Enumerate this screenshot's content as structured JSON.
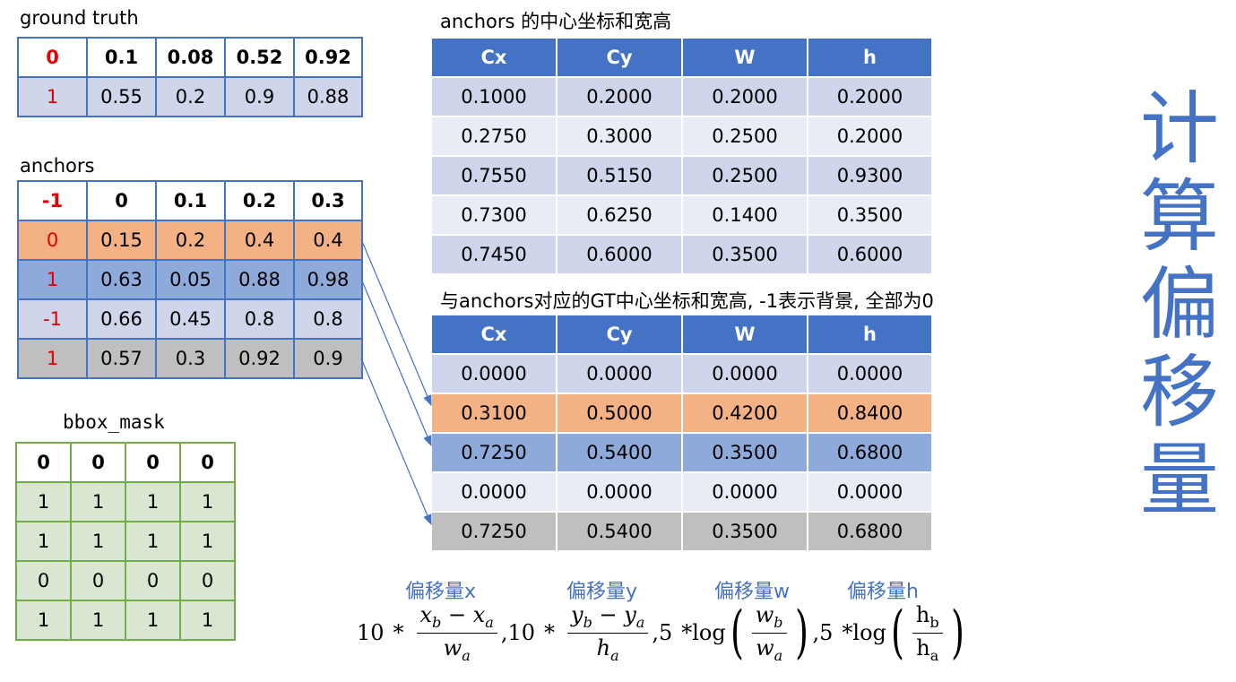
{
  "ground_truth": {
    "title": "ground truth",
    "header": [
      "0",
      "0.1",
      "0.08",
      "0.52",
      "0.92"
    ],
    "rows": [
      [
        "1",
        "0.55",
        "0.2",
        "0.9",
        "0.88"
      ]
    ]
  },
  "anchors": {
    "title": "anchors",
    "header": [
      "-1",
      "0",
      "0.1",
      "0.2",
      "0.3"
    ],
    "rows": [
      [
        "0",
        "0.15",
        "0.2",
        "0.4",
        "0.4"
      ],
      [
        "1",
        "0.63",
        "0.05",
        "0.88",
        "0.98"
      ],
      [
        "-1",
        "0.66",
        "0.45",
        "0.8",
        "0.8"
      ],
      [
        "1",
        "0.57",
        "0.3",
        "0.92",
        "0.9"
      ]
    ]
  },
  "bbox_mask": {
    "title": "bbox_mask",
    "rows": [
      [
        "0",
        "0",
        "0",
        "0"
      ],
      [
        "1",
        "1",
        "1",
        "1"
      ],
      [
        "1",
        "1",
        "1",
        "1"
      ],
      [
        "0",
        "0",
        "0",
        "0"
      ],
      [
        "1",
        "1",
        "1",
        "1"
      ]
    ]
  },
  "anchor_centers": {
    "title": "anchors 的中心坐标和宽高",
    "columns": [
      "Cx",
      "Cy",
      "W",
      "h"
    ],
    "rows": [
      [
        "0.1000",
        "0.2000",
        "0.2000",
        "0.2000"
      ],
      [
        "0.2750",
        "0.3000",
        "0.2500",
        "0.2000"
      ],
      [
        "0.7550",
        "0.5150",
        "0.2500",
        "0.9300"
      ],
      [
        "0.7300",
        "0.6250",
        "0.1400",
        "0.3500"
      ],
      [
        "0.7450",
        "0.6000",
        "0.3500",
        "0.6000"
      ]
    ]
  },
  "gt_centers": {
    "title": "与anchors对应的GT中心坐标和宽高, -1表示背景, 全部为0",
    "columns": [
      "Cx",
      "Cy",
      "W",
      "h"
    ],
    "rows": [
      [
        "0.0000",
        "0.0000",
        "0.0000",
        "0.0000"
      ],
      [
        "0.3100",
        "0.5000",
        "0.4200",
        "0.8400"
      ],
      [
        "0.7250",
        "0.5400",
        "0.3500",
        "0.6800"
      ],
      [
        "0.0000",
        "0.0000",
        "0.0000",
        "0.0000"
      ],
      [
        "0.7250",
        "0.5400",
        "0.3500",
        "0.6800"
      ]
    ]
  },
  "side_title": [
    "计",
    "算",
    "偏",
    "移",
    "量"
  ],
  "offset_labels": [
    "偏移量x",
    "偏移量y",
    "偏移量w",
    "偏移量h"
  ],
  "formula": {
    "c10a": "10",
    "c10b": "10",
    "c5a": "5",
    "c5b": "5",
    "times": "*",
    "minus": "−",
    "comma": ",",
    "log": "log",
    "xb": "x",
    "xa": "x",
    "wa": "w",
    "yb": "y",
    "ya": "y",
    "ha": "h",
    "wb2": "w",
    "wa2": "w",
    "hb3": "h",
    "ha3": "h",
    "sub_b": "b",
    "sub_a": "a"
  },
  "colors": {
    "accent_blue": "#4472c4",
    "orange_row": "#f4b183",
    "blue_row": "#8eaadb",
    "gray_row": "#bfbfbf",
    "lavender_row": "#cfd5ea",
    "green_border": "#70ad47",
    "red_text": "#e00000"
  }
}
